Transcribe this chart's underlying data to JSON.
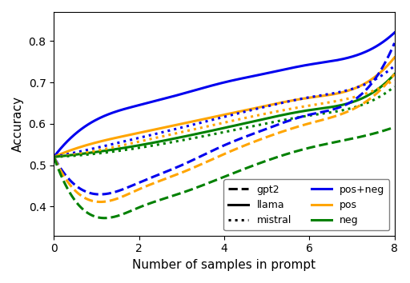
{
  "x": [
    0,
    1,
    2,
    3,
    4,
    5,
    6,
    7,
    8
  ],
  "lines": {
    "llama_posneg": [
      0.52,
      0.61,
      0.645,
      0.672,
      0.7,
      0.722,
      0.743,
      0.762,
      0.82
    ],
    "llama_pos": [
      0.52,
      0.555,
      0.578,
      0.6,
      0.622,
      0.644,
      0.663,
      0.683,
      0.76
    ],
    "llama_neg": [
      0.52,
      0.532,
      0.548,
      0.568,
      0.59,
      0.613,
      0.633,
      0.652,
      0.72
    ],
    "mistral_posneg": [
      0.52,
      0.542,
      0.566,
      0.591,
      0.617,
      0.642,
      0.664,
      0.684,
      0.74
    ],
    "mistral_pos": [
      0.52,
      0.535,
      0.557,
      0.58,
      0.603,
      0.625,
      0.644,
      0.663,
      0.706
    ],
    "mistral_neg": [
      0.52,
      0.528,
      0.542,
      0.56,
      0.58,
      0.601,
      0.62,
      0.638,
      0.69
    ],
    "gpt2_posneg": [
      0.52,
      0.43,
      0.458,
      0.5,
      0.548,
      0.588,
      0.622,
      0.654,
      0.795
    ],
    "gpt2_pos": [
      0.52,
      0.412,
      0.442,
      0.482,
      0.527,
      0.568,
      0.601,
      0.634,
      0.72
    ],
    "gpt2_neg": [
      0.52,
      0.375,
      0.398,
      0.433,
      0.472,
      0.511,
      0.542,
      0.564,
      0.592
    ]
  },
  "colors": {
    "posneg": "#0000ee",
    "pos": "#FFA500",
    "neg": "#008000"
  },
  "linewidth": 2.2,
  "xlabel": "Number of samples in prompt",
  "ylabel": "Accuracy",
  "xlim": [
    0,
    8
  ],
  "ylim": [
    0.33,
    0.87
  ],
  "xticks": [
    0,
    2,
    4,
    6,
    8
  ]
}
